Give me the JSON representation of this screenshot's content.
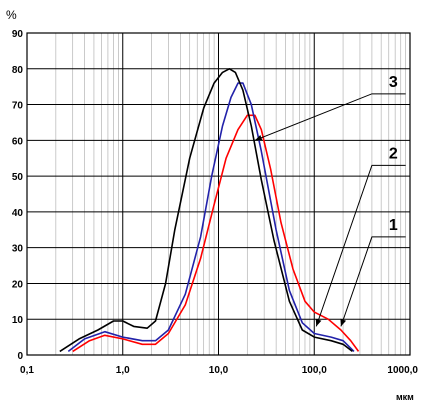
{
  "chart_data": {
    "type": "line",
    "x_scale": "log",
    "xlim": [
      0.1,
      1000.0
    ],
    "ylim": [
      0,
      90
    ],
    "y_unit": "%",
    "x_unit": "мкм",
    "x_tick_labels": [
      "0,1",
      "1,0",
      "10,0",
      "100,0",
      "1000,0"
    ],
    "x_tick_values": [
      0.1,
      1,
      10,
      100,
      1000
    ],
    "y_ticks": [
      0,
      10,
      20,
      30,
      40,
      50,
      60,
      70,
      80,
      90
    ],
    "grid": true,
    "series": [
      {
        "name": "1",
        "color": "#ff0000",
        "x": [
          0.3,
          0.45,
          0.65,
          1.0,
          1.6,
          2.2,
          3.0,
          4.5,
          6.5,
          9.0,
          12.0,
          16.0,
          20.0,
          24.0,
          28.0,
          35.0,
          45.0,
          60.0,
          80.0,
          100.0,
          140.0,
          190.0,
          240.0,
          290.0
        ],
        "y": [
          1,
          4,
          5.5,
          4.5,
          3,
          3,
          6,
          14,
          27,
          42,
          55,
          63,
          67,
          67,
          63,
          52,
          37,
          24,
          15,
          12,
          10,
          7,
          4,
          1
        ]
      },
      {
        "name": "2",
        "color": "#2222aa",
        "x": [
          0.27,
          0.4,
          0.65,
          1.0,
          1.6,
          2.2,
          3.0,
          4.5,
          6.5,
          8.5,
          11.0,
          13.5,
          16.0,
          18.0,
          22.0,
          28.0,
          40.0,
          55.0,
          75.0,
          100.0,
          150.0,
          200.0,
          260.0
        ],
        "y": [
          1,
          4.5,
          6.5,
          5,
          4,
          4,
          7,
          17,
          33,
          50,
          64,
          72,
          76,
          76,
          70,
          57,
          35,
          18,
          9,
          6,
          5,
          4,
          1
        ]
      },
      {
        "name": "3",
        "color": "#000000",
        "x": [
          0.22,
          0.35,
          0.55,
          0.8,
          1.0,
          1.3,
          1.8,
          2.2,
          2.8,
          3.5,
          5.0,
          7.0,
          9.0,
          11.0,
          13.0,
          15.0,
          18.0,
          22.0,
          28.0,
          38.0,
          55.0,
          75.0,
          100.0,
          150.0,
          200.0,
          250.0
        ],
        "y": [
          1,
          4.5,
          7,
          9.5,
          9.5,
          8,
          7.5,
          9.5,
          20,
          35,
          55,
          69,
          76,
          79,
          80,
          79,
          74,
          64,
          49,
          32,
          15,
          7,
          5,
          4,
          3,
          1
        ]
      }
    ],
    "annotations": [
      {
        "label": "3",
        "series": "3",
        "point": [
          24.0,
          60.0
        ],
        "elbow": [
          400.0,
          73.0
        ],
        "end": [
          900.0,
          73.0
        ]
      },
      {
        "label": "2",
        "series": "2",
        "point": [
          105.0,
          8.0
        ],
        "elbow": [
          400.0,
          53.0
        ],
        "end": [
          900.0,
          53.0
        ]
      },
      {
        "label": "1",
        "series": "1",
        "point": [
          190.0,
          8.0
        ],
        "elbow": [
          400.0,
          33.0
        ],
        "end": [
          900.0,
          33.0
        ]
      }
    ]
  }
}
